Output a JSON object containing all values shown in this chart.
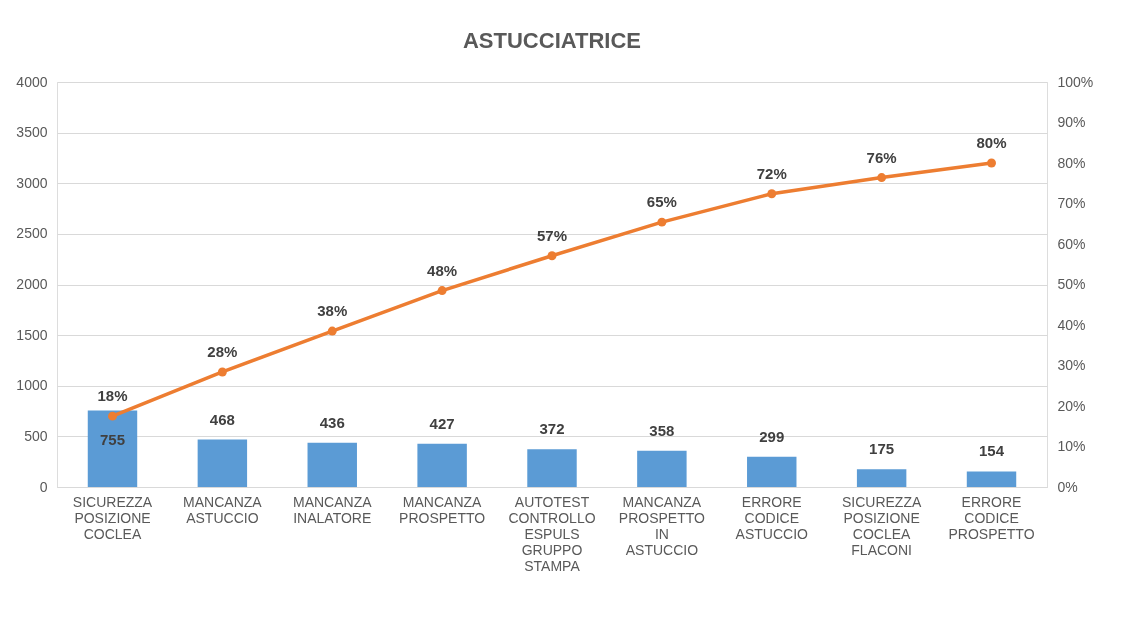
{
  "chart_data": {
    "type": "bar",
    "title": "ASTUCCIATRICE",
    "categories": [
      "SICUREZZA POSIZIONE COCLEA",
      "MANCANZA ASTUCCIO",
      "MANCANZA INALATORE",
      "MANCANZA PROSPETTO",
      "AUTOTEST CONTROLLO ESPULS GRUPPO STAMPA",
      "MANCANZA PROSPETTO IN ASTUCCIO",
      "ERRORE CODICE ASTUCCIO",
      "SICUREZZA POSIZIONE COCLEA FLACONI",
      "ERRORE CODICE PROSPETTO"
    ],
    "series": [
      {
        "color": "#5b9bd5",
        "values": [
          755,
          468,
          436,
          427,
          372,
          358,
          299,
          175,
          154
        ]
      },
      {
        "type": "line",
        "axis": "y2",
        "color": "#ed7d31",
        "marker": "circle",
        "values": [
          17.5,
          28.4,
          38.5,
          48.5,
          57.1,
          65.4,
          72.4,
          76.4,
          80.0
        ],
        "value_labels": [
          "18%",
          "28%",
          "38%",
          "48%",
          "57%",
          "65%",
          "72%",
          "76%",
          "80%"
        ]
      }
    ],
    "data_labels": true,
    "ylim": [
      0,
      4000
    ],
    "yticks": [
      0,
      500,
      1000,
      1500,
      2000,
      2500,
      3000,
      3500,
      4000
    ],
    "y2lim": [
      0,
      100
    ],
    "y2ticks": [
      {
        "value": 0,
        "label": "0%"
      },
      {
        "value": 10,
        "label": "10%"
      },
      {
        "value": 20,
        "label": "20%"
      },
      {
        "value": 30,
        "label": "30%"
      },
      {
        "value": 40,
        "label": "40%"
      },
      {
        "value": 50,
        "label": "50%"
      },
      {
        "value": 60,
        "label": "60%"
      },
      {
        "value": 70,
        "label": "70%"
      },
      {
        "value": 80,
        "label": "80%"
      },
      {
        "value": 90,
        "label": "90%"
      },
      {
        "value": 100,
        "label": "100%"
      }
    ],
    "grid": "y"
  }
}
